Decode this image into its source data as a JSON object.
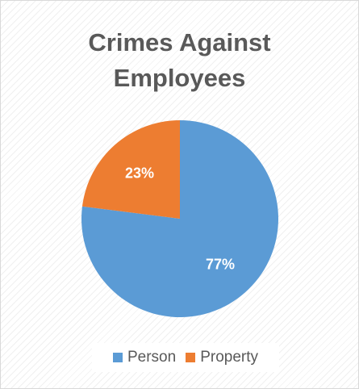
{
  "chart_data": {
    "type": "pie",
    "title": "Crimes Against Employees",
    "title_lines": [
      "Crimes Against",
      "Employees"
    ],
    "categories": [
      "Person",
      "Property"
    ],
    "values": [
      77,
      23
    ],
    "data_labels": [
      "77%",
      "23%"
    ],
    "colors": [
      "#5b9bd5",
      "#ed7d31"
    ],
    "label_color": "#ffffff",
    "legend_position": "bottom"
  }
}
